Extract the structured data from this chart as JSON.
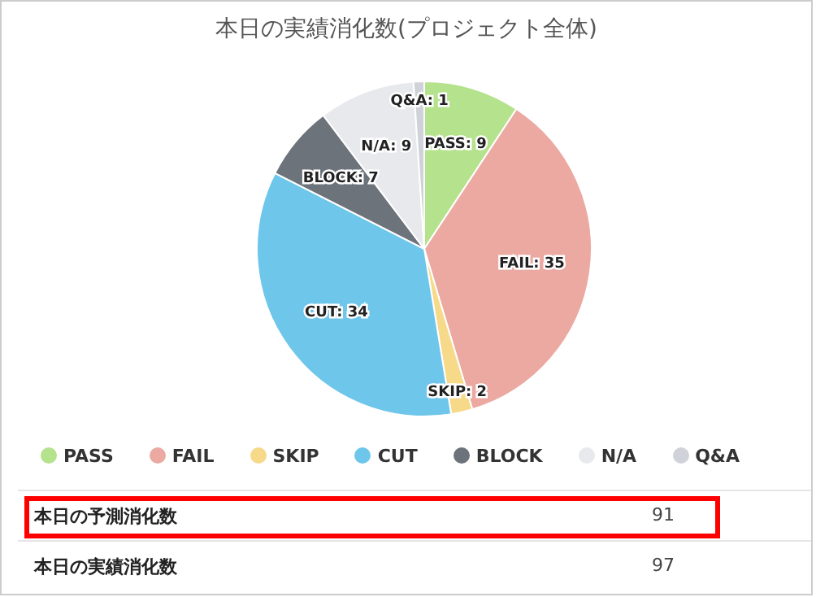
{
  "chart_data": {
    "type": "pie",
    "title": "本日の実績消化数(プロジェクト全体)",
    "categories": [
      "PASS",
      "FAIL",
      "SKIP",
      "CUT",
      "BLOCK",
      "N/A",
      "Q&A"
    ],
    "values": [
      9,
      35,
      2,
      34,
      7,
      9,
      1
    ],
    "colors": [
      "#b5e28c",
      "#eba9a2",
      "#f7d98a",
      "#6ec6ea",
      "#6d737b",
      "#e7e9ec",
      "#cfd2d8"
    ],
    "value_labels": [
      "PASS: 9",
      "FAIL: 35",
      "SKIP: 2",
      "CUT: 34",
      "BLOCK: 7",
      "N/A: 9",
      "Q&A: 1"
    ],
    "legend": "bottom",
    "annotations": [
      "本日の予測消化数",
      "91",
      "本日の実績消化数",
      "97"
    ]
  }
}
